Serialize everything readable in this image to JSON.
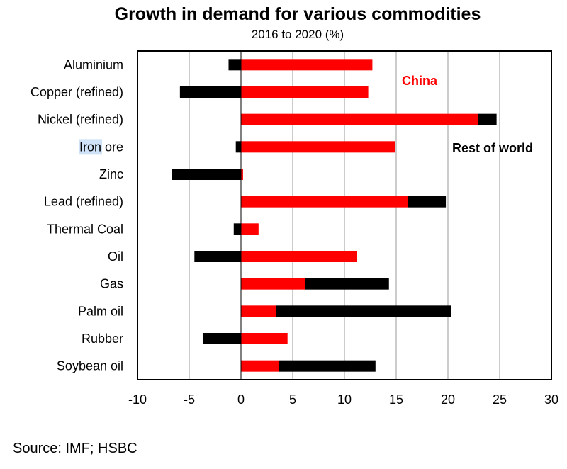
{
  "chart_data": {
    "type": "bar",
    "title": "Growth in demand for various commodities",
    "subtitle": "2016 to 2020 (%)",
    "categories": [
      "Aluminium",
      "Copper (refined)",
      "Nickel (refined)",
      "Iron ore",
      "Zinc",
      "Lead (refined)",
      "Thermal  Coal",
      "Oil",
      "Gas",
      "Palm oil",
      "Rubber",
      "Soybean oil"
    ],
    "series": [
      {
        "name": "China",
        "color": "#ff0000",
        "values": [
          12.7,
          12.3,
          22.9,
          14.9,
          0.2,
          16.1,
          1.7,
          11.2,
          6.2,
          3.4,
          4.5,
          3.7
        ]
      },
      {
        "name": "Rest of world",
        "color": "#000000",
        "values": [
          -1.2,
          -5.9,
          1.8,
          -0.5,
          -6.7,
          3.7,
          -0.7,
          -4.5,
          8.1,
          16.9,
          -3.7,
          9.3
        ]
      }
    ],
    "xlim": [
      -10,
      30
    ],
    "xticks": [
      -10,
      -5,
      0,
      5,
      10,
      15,
      20,
      25,
      30
    ],
    "grid": "vertical",
    "layout": "horizontal bars, positive values stacked from zero"
  },
  "source": "Source: IMF; HSBC",
  "highlighted_word": "Iron"
}
